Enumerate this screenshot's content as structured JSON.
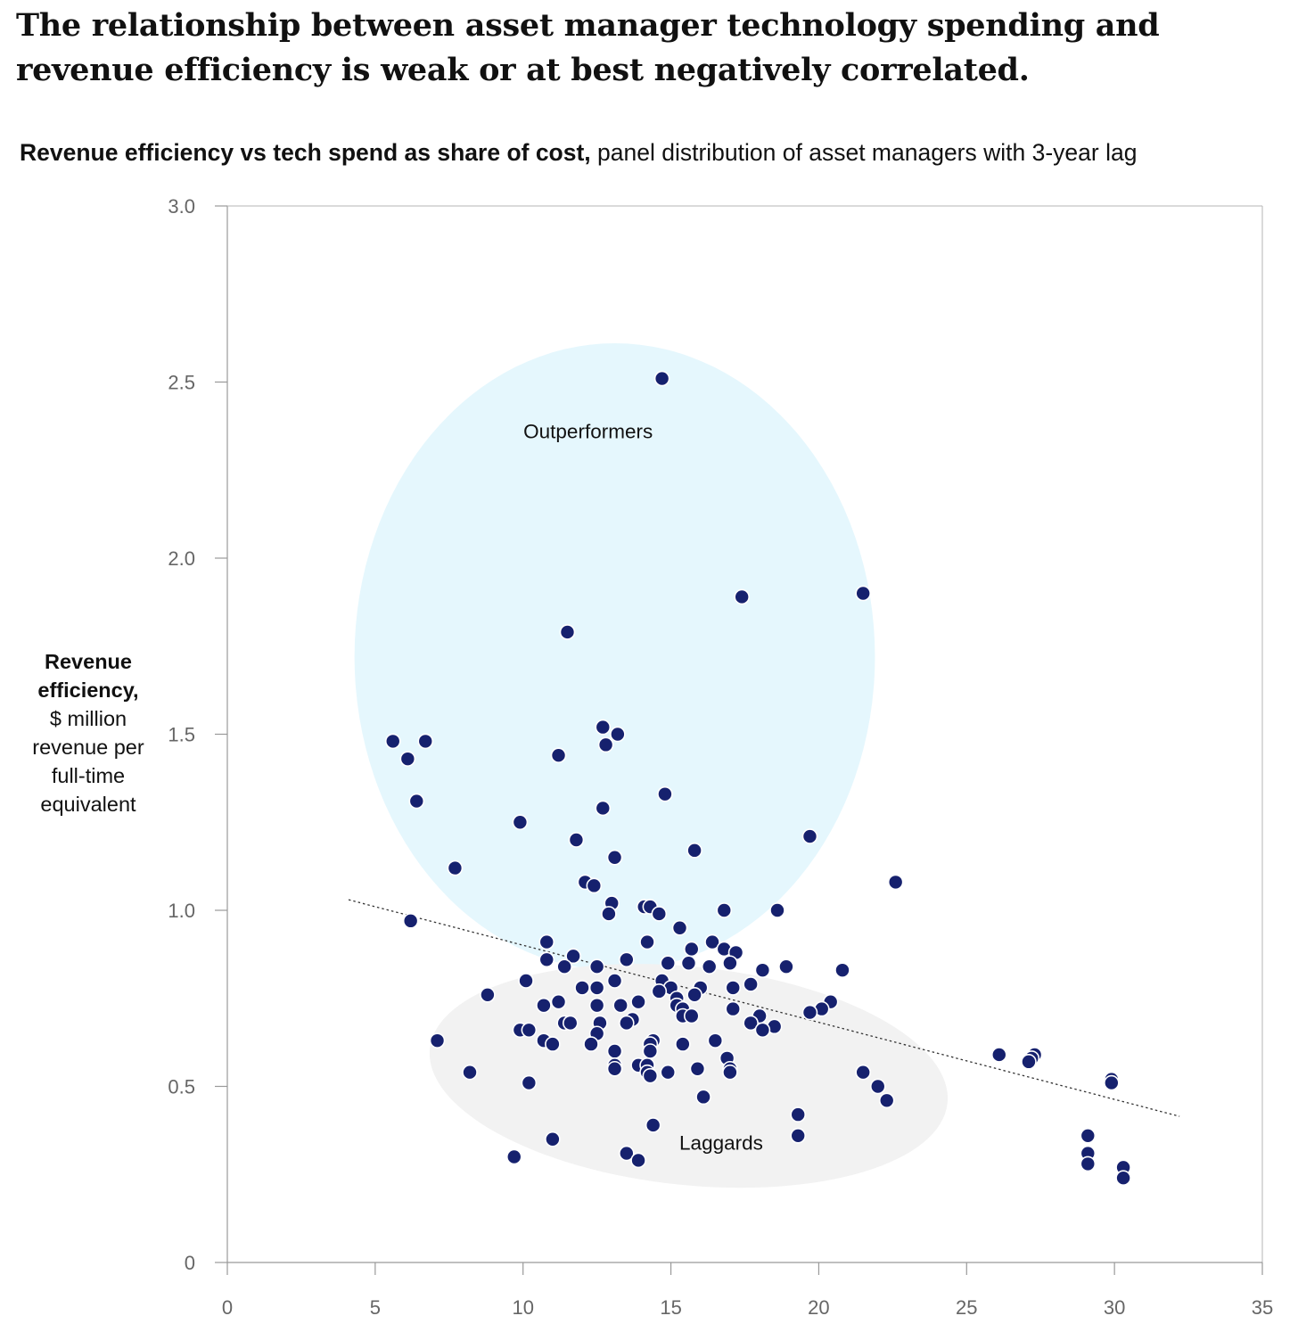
{
  "headline": "The relationship between asset manager technology spending and revenue efficiency is weak or at best negatively correlated.",
  "subtitle": {
    "bold": "Revenue efficiency vs tech spend as share of cost,",
    "regular": " panel distribution of asset managers with 3-year lag"
  },
  "y_axis_label": {
    "bold": "Revenue efficiency,",
    "rest": "$ million revenue per full-time equivalent"
  },
  "colors": {
    "point": "#16216e",
    "outperformer_fill": "#e5f7fd",
    "laggard_fill": "#f2f2f2",
    "axis": "#999999",
    "trend": "#333333"
  },
  "chart_data": {
    "type": "scatter",
    "title": "Revenue efficiency vs tech spend as share of cost",
    "xlabel": "",
    "ylabel": "Revenue efficiency, $ million revenue per full-time equivalent",
    "xlim": [
      0,
      35
    ],
    "ylim": [
      0,
      3.0
    ],
    "x_ticks": [
      0,
      5,
      10,
      15,
      20,
      25,
      30,
      35
    ],
    "y_ticks": [
      0,
      0.5,
      1.0,
      1.5,
      2.0,
      2.5,
      3.0
    ],
    "x_tick_labels": [
      "0",
      "5",
      "10",
      "15",
      "20",
      "25",
      "30",
      "35"
    ],
    "y_tick_labels": [
      "0",
      "0.5",
      "1.0",
      "1.5",
      "2.0",
      "2.5",
      "3.0"
    ],
    "grid": false,
    "regions": [
      {
        "name": "Outperformers",
        "cx": 13.1,
        "cy": 1.72,
        "rx": 8.8,
        "ry": 0.89
      },
      {
        "name": "Laggards",
        "cx": 15.6,
        "cy": 0.53,
        "rx": 8.8,
        "ry": 0.31
      }
    ],
    "trendline": {
      "x": [
        4.1,
        32.2
      ],
      "y": [
        1.03,
        0.415
      ]
    },
    "points": [
      [
        14.7,
        2.51
      ],
      [
        17.4,
        1.89
      ],
      [
        21.5,
        1.9
      ],
      [
        11.5,
        1.79
      ],
      [
        5.6,
        1.48
      ],
      [
        6.7,
        1.48
      ],
      [
        6.1,
        1.43
      ],
      [
        6.4,
        1.31
      ],
      [
        12.7,
        1.52
      ],
      [
        13.2,
        1.5
      ],
      [
        12.8,
        1.47
      ],
      [
        11.2,
        1.44
      ],
      [
        14.8,
        1.33
      ],
      [
        12.7,
        1.29
      ],
      [
        9.9,
        1.25
      ],
      [
        11.8,
        1.2
      ],
      [
        19.7,
        1.21
      ],
      [
        15.8,
        1.17
      ],
      [
        13.1,
        1.15
      ],
      [
        7.7,
        1.12
      ],
      [
        22.6,
        1.08
      ],
      [
        12.1,
        1.08
      ],
      [
        12.4,
        1.07
      ],
      [
        13.0,
        1.02
      ],
      [
        12.9,
        0.99
      ],
      [
        14.1,
        1.01
      ],
      [
        14.3,
        1.01
      ],
      [
        14.6,
        0.99
      ],
      [
        16.8,
        1.0
      ],
      [
        18.6,
        1.0
      ],
      [
        6.2,
        0.97
      ],
      [
        15.3,
        0.95
      ],
      [
        10.8,
        0.91
      ],
      [
        14.2,
        0.91
      ],
      [
        16.4,
        0.91
      ],
      [
        16.8,
        0.89
      ],
      [
        15.7,
        0.89
      ],
      [
        17.2,
        0.88
      ],
      [
        11.7,
        0.87
      ],
      [
        10.8,
        0.86
      ],
      [
        13.5,
        0.86
      ],
      [
        15.6,
        0.85
      ],
      [
        14.9,
        0.85
      ],
      [
        17.0,
        0.85
      ],
      [
        11.4,
        0.84
      ],
      [
        12.5,
        0.84
      ],
      [
        16.3,
        0.84
      ],
      [
        18.9,
        0.84
      ],
      [
        18.1,
        0.83
      ],
      [
        20.8,
        0.83
      ],
      [
        10.1,
        0.8
      ],
      [
        13.1,
        0.8
      ],
      [
        14.7,
        0.8
      ],
      [
        17.7,
        0.79
      ],
      [
        12.0,
        0.78
      ],
      [
        12.5,
        0.78
      ],
      [
        15.0,
        0.78
      ],
      [
        16.0,
        0.78
      ],
      [
        17.1,
        0.78
      ],
      [
        14.6,
        0.77
      ],
      [
        8.8,
        0.76
      ],
      [
        15.8,
        0.76
      ],
      [
        15.2,
        0.75
      ],
      [
        11.2,
        0.74
      ],
      [
        13.9,
        0.74
      ],
      [
        20.4,
        0.74
      ],
      [
        10.7,
        0.73
      ],
      [
        12.5,
        0.73
      ],
      [
        13.3,
        0.73
      ],
      [
        15.2,
        0.73
      ],
      [
        15.4,
        0.72
      ],
      [
        20.1,
        0.72
      ],
      [
        17.1,
        0.72
      ],
      [
        19.7,
        0.71
      ],
      [
        15.4,
        0.7
      ],
      [
        18.0,
        0.7
      ],
      [
        15.7,
        0.7
      ],
      [
        13.7,
        0.69
      ],
      [
        13.5,
        0.68
      ],
      [
        11.4,
        0.68
      ],
      [
        11.6,
        0.68
      ],
      [
        12.6,
        0.68
      ],
      [
        17.7,
        0.68
      ],
      [
        18.5,
        0.67
      ],
      [
        9.9,
        0.66
      ],
      [
        10.2,
        0.66
      ],
      [
        18.1,
        0.66
      ],
      [
        12.5,
        0.65
      ],
      [
        14.4,
        0.63
      ],
      [
        7.1,
        0.63
      ],
      [
        10.7,
        0.63
      ],
      [
        16.5,
        0.63
      ],
      [
        11.0,
        0.62
      ],
      [
        12.3,
        0.62
      ],
      [
        14.3,
        0.62
      ],
      [
        15.4,
        0.62
      ],
      [
        13.1,
        0.6
      ],
      [
        14.3,
        0.6
      ],
      [
        26.1,
        0.59
      ],
      [
        27.3,
        0.59
      ],
      [
        27.2,
        0.58
      ],
      [
        27.1,
        0.57
      ],
      [
        16.9,
        0.58
      ],
      [
        13.1,
        0.56
      ],
      [
        13.9,
        0.56
      ],
      [
        15.9,
        0.55
      ],
      [
        14.2,
        0.56
      ],
      [
        17.0,
        0.55
      ],
      [
        13.1,
        0.55
      ],
      [
        8.2,
        0.54
      ],
      [
        14.2,
        0.54
      ],
      [
        14.9,
        0.54
      ],
      [
        17.0,
        0.54
      ],
      [
        21.5,
        0.54
      ],
      [
        14.3,
        0.53
      ],
      [
        29.9,
        0.52
      ],
      [
        29.9,
        0.51
      ],
      [
        10.2,
        0.51
      ],
      [
        22.0,
        0.5
      ],
      [
        16.1,
        0.47
      ],
      [
        22.3,
        0.46
      ],
      [
        19.3,
        0.42
      ],
      [
        14.4,
        0.39
      ],
      [
        19.3,
        0.36
      ],
      [
        29.1,
        0.36
      ],
      [
        11.0,
        0.35
      ],
      [
        13.5,
        0.31
      ],
      [
        29.1,
        0.31
      ],
      [
        9.7,
        0.3
      ],
      [
        13.9,
        0.29
      ],
      [
        29.1,
        0.28
      ],
      [
        30.3,
        0.27
      ],
      [
        30.3,
        0.24
      ]
    ]
  }
}
